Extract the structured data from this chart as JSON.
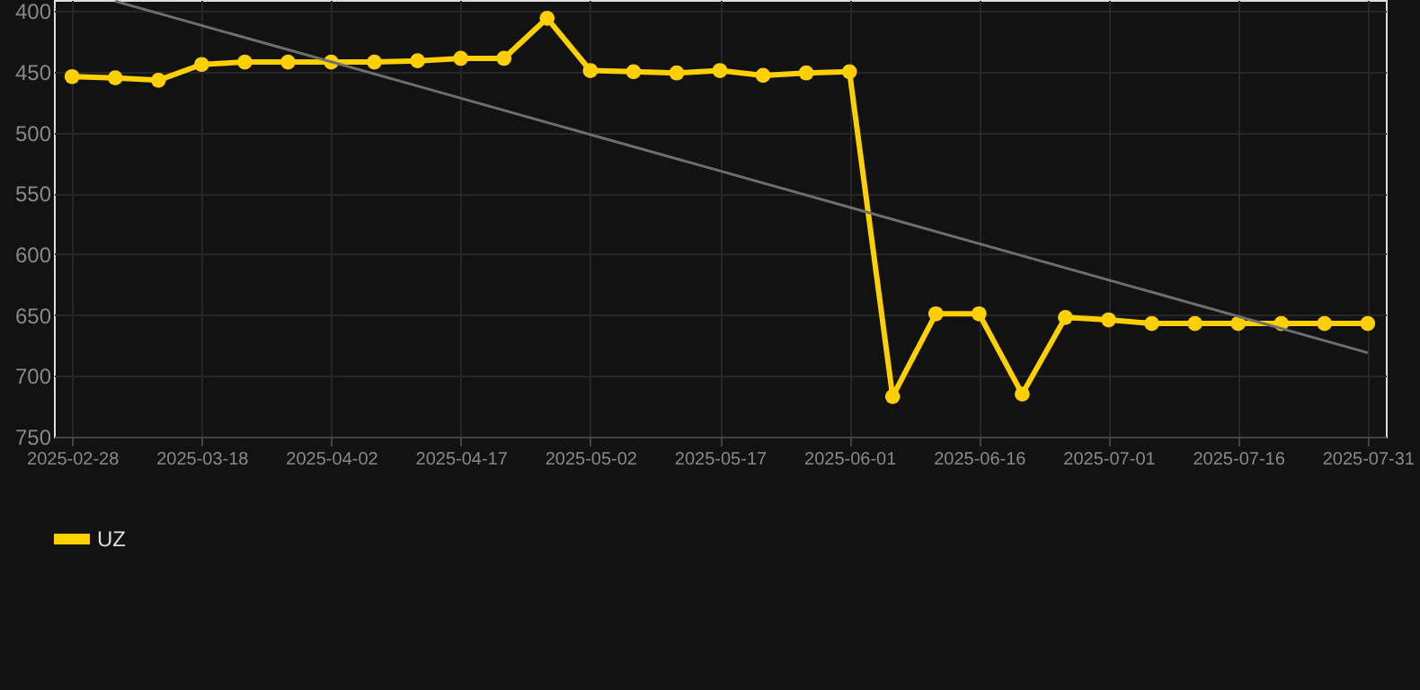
{
  "chart_data": {
    "type": "line",
    "categories": [
      "2025-02-28",
      null,
      null,
      "2025-03-18",
      null,
      null,
      "2025-04-02",
      null,
      null,
      "2025-04-17",
      null,
      null,
      "2025-05-02",
      null,
      null,
      "2025-05-17",
      null,
      null,
      "2025-06-01",
      null,
      null,
      "2025-06-16",
      null,
      null,
      "2025-07-01",
      null,
      null,
      "2025-07-16",
      null,
      null,
      "2025-07-31"
    ],
    "series": [
      {
        "name": "UZ",
        "color": "#ffd000",
        "marker": "circle",
        "values": [
          454,
          455,
          457,
          444,
          442,
          442,
          442,
          442,
          441,
          439,
          439,
          406,
          449,
          450,
          451,
          449,
          453,
          451,
          450,
          717,
          649,
          649,
          715,
          652,
          654,
          657,
          657,
          657,
          657,
          657,
          657
        ]
      },
      {
        "type": "line",
        "color": "#6e6e6e",
        "marker": "none",
        "values": [
          null,
          392,
          null,
          null,
          null,
          null,
          null,
          null,
          null,
          null,
          null,
          null,
          null,
          null,
          null,
          null,
          null,
          null,
          null,
          null,
          null,
          null,
          null,
          null,
          null,
          null,
          null,
          null,
          null,
          null,
          681
        ]
      }
    ],
    "ylim": [
      750,
      391
    ],
    "yticks": [
      400,
      450,
      500,
      550,
      600,
      650,
      700,
      750
    ],
    "grid": true,
    "legend": "bottom"
  }
}
